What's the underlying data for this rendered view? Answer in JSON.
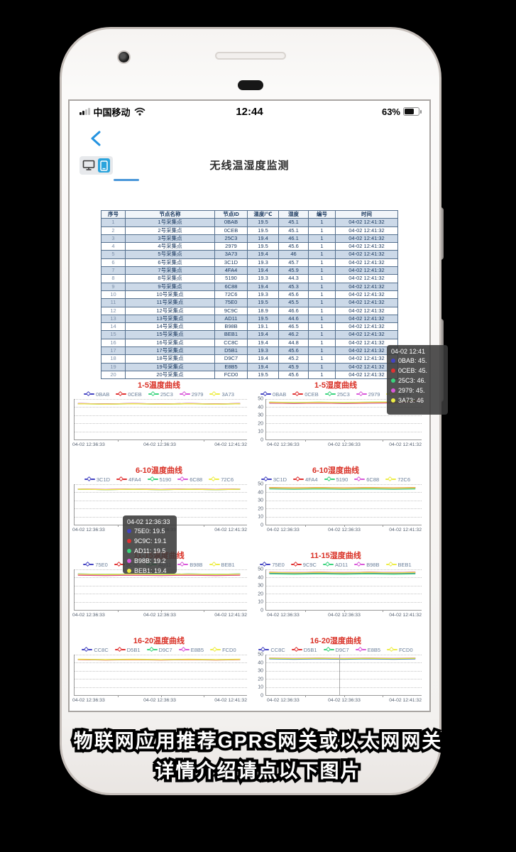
{
  "status_bar": {
    "carrier": "中国移动",
    "time": "12:44",
    "battery": "63%"
  },
  "toolbar": {
    "title": "无线温湿度监测"
  },
  "table": {
    "headers": [
      "序号",
      "节点名称",
      "节点ID",
      "温度/℃",
      "湿度",
      "编号",
      "时间"
    ],
    "rows": [
      [
        "1",
        "1号采集点",
        "0BAB",
        "19.5",
        "45.1",
        "1",
        "04-02 12:41:32"
      ],
      [
        "2",
        "2号采集点",
        "0CEB",
        "19.5",
        "45.1",
        "1",
        "04-02 12:41:32"
      ],
      [
        "3",
        "3号采集点",
        "25C3",
        "19.4",
        "46.1",
        "1",
        "04-02 12:41:32"
      ],
      [
        "4",
        "4号采集点",
        "2979",
        "19.5",
        "45.6",
        "1",
        "04-02 12:41:32"
      ],
      [
        "5",
        "5号采集点",
        "3A73",
        "19.4",
        "46",
        "1",
        "04-02 12:41:32"
      ],
      [
        "6",
        "6号采集点",
        "3C1D",
        "19.3",
        "45.7",
        "1",
        "04-02 12:41:32"
      ],
      [
        "7",
        "7号采集点",
        "4FA4",
        "19.4",
        "45.9",
        "1",
        "04-02 12:41:32"
      ],
      [
        "8",
        "8号采集点",
        "5190",
        "19.3",
        "44.3",
        "1",
        "04-02 12:41:32"
      ],
      [
        "9",
        "9号采集点",
        "6C88",
        "19.4",
        "45.3",
        "1",
        "04-02 12:41:32"
      ],
      [
        "10",
        "10号采集点",
        "72C6",
        "19.3",
        "45.6",
        "1",
        "04-02 12:41:32"
      ],
      [
        "11",
        "11号采集点",
        "75E0",
        "19.5",
        "45.5",
        "1",
        "04-02 12:41:32"
      ],
      [
        "12",
        "12号采集点",
        "9C9C",
        "18.9",
        "46.6",
        "1",
        "04-02 12:41:32"
      ],
      [
        "13",
        "13号采集点",
        "AD11",
        "19.5",
        "44.6",
        "1",
        "04-02 12:41:32"
      ],
      [
        "14",
        "14号采集点",
        "B98B",
        "19.1",
        "46.5",
        "1",
        "04-02 12:41:32"
      ],
      [
        "15",
        "15号采集点",
        "BEB1",
        "19.4",
        "46.2",
        "1",
        "04-02 12:41:32"
      ],
      [
        "16",
        "16号采集点",
        "CC8C",
        "19.4",
        "44.8",
        "1",
        "04-02 12:41:32"
      ],
      [
        "17",
        "17号采集点",
        "D5B1",
        "19.3",
        "45.6",
        "1",
        "04-02 12:41:32"
      ],
      [
        "18",
        "18号采集点",
        "D9C7",
        "19.4",
        "45.2",
        "1",
        "04-02 12:41:32"
      ],
      [
        "19",
        "19号采集点",
        "E8B5",
        "19.4",
        "45.9",
        "1",
        "04-02 12:41:32"
      ],
      [
        "20",
        "20号采集点",
        "FCD0",
        "19.5",
        "45.6",
        "1",
        "04-02 12:41:32"
      ]
    ]
  },
  "chart_common": {
    "x_labels": [
      "04-02 12:36:33",
      "04-02 12:36:33",
      "04-02 12:41:32"
    ],
    "palette": [
      "#4343c2",
      "#e03131",
      "#3ad47d",
      "#d958d9",
      "#eded45"
    ],
    "humidity_y_ticks": [
      "50",
      "40",
      "30",
      "20",
      "10",
      "0"
    ]
  },
  "charts": [
    {
      "id": "temp-1-5",
      "pos": "left",
      "title": "1-5温度曲线",
      "ymax": 22,
      "y_ticks": null,
      "series": [
        {
          "name": "0BAB",
          "value": 19.5
        },
        {
          "name": "0CEB",
          "value": 19.5
        },
        {
          "name": "25C3",
          "value": 19.4
        },
        {
          "name": "2979",
          "value": 19.5
        },
        {
          "name": "3A73",
          "value": 19.4
        }
      ]
    },
    {
      "id": "hum-1-5",
      "pos": "right",
      "title": "1-5湿度曲线",
      "ymax": 50,
      "y_ticks": [
        "50",
        "40",
        "30",
        "20",
        "10",
        "0"
      ],
      "end_marker": true,
      "series": [
        {
          "name": "0BAB",
          "value": 45.1
        },
        {
          "name": "0CEB",
          "value": 45.1
        },
        {
          "name": "25C3",
          "value": 46.1
        },
        {
          "name": "2979",
          "value": 45.6
        },
        {
          "name": "3A73",
          "value": 46
        }
      ]
    },
    {
      "id": "temp-6-10",
      "pos": "left",
      "title": "6-10温度曲线",
      "ymax": 22,
      "y_ticks": null,
      "series": [
        {
          "name": "3C1D",
          "value": 19.3
        },
        {
          "name": "4FA4",
          "value": 19.4
        },
        {
          "name": "5190",
          "value": 19.3
        },
        {
          "name": "6C88",
          "value": 19.4
        },
        {
          "name": "72C6",
          "value": 19.3
        }
      ]
    },
    {
      "id": "hum-6-10",
      "pos": "right",
      "title": "6-10湿度曲线",
      "ymax": 50,
      "y_ticks": [
        "50",
        "40",
        "30",
        "20",
        "10",
        "0"
      ],
      "series": [
        {
          "name": "3C1D",
          "value": 45.7
        },
        {
          "name": "4FA4",
          "value": 45.9
        },
        {
          "name": "5190",
          "value": 44.3
        },
        {
          "name": "6C88",
          "value": 45.3
        },
        {
          "name": "72C6",
          "value": 45.6
        }
      ]
    },
    {
      "id": "temp-11-15",
      "pos": "left",
      "title": "11-15温度曲线",
      "ymax": 22,
      "y_ticks": null,
      "series": [
        {
          "name": "75E0",
          "value": 19.5
        },
        {
          "name": "9C9C",
          "value": 18.9
        },
        {
          "name": "AD11",
          "value": 19.5
        },
        {
          "name": "B98B",
          "value": 19.1
        },
        {
          "name": "BEB1",
          "value": 19.4
        }
      ]
    },
    {
      "id": "hum-11-15",
      "pos": "right",
      "title": "11-15湿度曲线",
      "ymax": 50,
      "y_ticks": [
        "50",
        "40",
        "30",
        "20",
        "10",
        "0"
      ],
      "series": [
        {
          "name": "75E0",
          "value": 45.5
        },
        {
          "name": "9C9C",
          "value": 46.6
        },
        {
          "name": "AD11",
          "value": 44.6
        },
        {
          "name": "B98B",
          "value": 46.5
        },
        {
          "name": "BEB1",
          "value": 46.2
        }
      ]
    },
    {
      "id": "temp-16-20",
      "pos": "left",
      "title": "16-20温度曲线",
      "ymax": 22,
      "y_ticks": null,
      "series": [
        {
          "name": "CC8C",
          "value": 19.4
        },
        {
          "name": "D5B1",
          "value": 19.3
        },
        {
          "name": "D9C7",
          "value": 19.4
        },
        {
          "name": "E8B5",
          "value": 19.4
        },
        {
          "name": "FCD0",
          "value": 19.5
        }
      ]
    },
    {
      "id": "hum-16-20",
      "pos": "right",
      "title": "16-20湿度曲线",
      "ymax": 50,
      "y_ticks": [
        "50",
        "40",
        "30",
        "20",
        "10",
        "0"
      ],
      "crosshair_pct": 47,
      "series": [
        {
          "name": "CC8C",
          "value": 44.8
        },
        {
          "name": "D5B1",
          "value": 45.6
        },
        {
          "name": "D9C7",
          "value": 45.2
        },
        {
          "name": "E8B5",
          "value": 45.9
        },
        {
          "name": "FCD0",
          "value": 45.6
        }
      ]
    }
  ],
  "tooltips": {
    "humidity_1_5": {
      "title": "04-02 12:41",
      "items": [
        "0BAB: 45.",
        "0CEB: 45.",
        "25C3: 46.",
        "2979: 45.",
        "3A73: 46"
      ]
    },
    "temperature_11_15": {
      "title": "04-02 12:36:33",
      "items": [
        "75E0: 19.5",
        "9C9C: 19.1",
        "AD11: 19.5",
        "B98B: 19.2",
        "BEB1: 19.4"
      ]
    }
  },
  "caption": {
    "line1": "物联网应用推荐GPRS网关或以太网网关",
    "line2": "详情介绍请点以下图片"
  },
  "colors": {
    "accent_blue": "#2493e0",
    "chart_title_red": "#d93025",
    "toggle_phone_blue": "#2aa4dc"
  }
}
